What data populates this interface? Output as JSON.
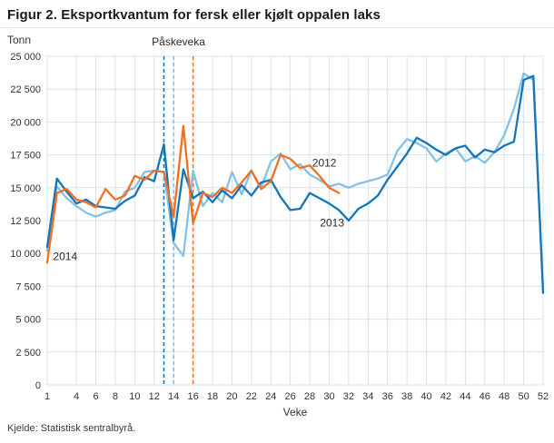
{
  "title": "Figur 2. Eksportkvantum for fersk eller kjølt oppalen laks",
  "source": "Kjelde: Statistisk sentralbyrå.",
  "chart_data": {
    "type": "line",
    "title": "Figur 2. Eksportkvantum for fersk eller kjølt oppalen laks",
    "ylabel": "Tonn",
    "xlabel": "Veke",
    "ylim": [
      0,
      25000
    ],
    "ytick_step": 2500,
    "x_range": [
      1,
      52
    ],
    "xticks": [
      1,
      4,
      6,
      8,
      10,
      12,
      14,
      16,
      18,
      20,
      22,
      24,
      26,
      28,
      30,
      32,
      34,
      36,
      38,
      40,
      42,
      44,
      46,
      48,
      50,
      52
    ],
    "grid": true,
    "legend_position": "inline-labels",
    "colors": {
      "grid": "#d6e2ec",
      "axis_text": "#333333",
      "annotation_text": "#2b2b2b"
    },
    "easter_annotation": {
      "label": "Påskeveka",
      "label_week": 14.5,
      "lines": [
        {
          "year": "2013",
          "week": 13,
          "color": "#1276b9"
        },
        {
          "year": "2012",
          "week": 14,
          "color": "#85c1e5"
        },
        {
          "year": "2014",
          "week": 16,
          "color": "#f36f21"
        }
      ]
    },
    "series": [
      {
        "name": "2012",
        "color": "#85c1e5",
        "start_week": 1,
        "values": [
          10200,
          15100,
          14200,
          13600,
          13100,
          12800,
          13100,
          13300,
          14700,
          15000,
          16200,
          16300,
          16200,
          10800,
          9800,
          16300,
          13600,
          14600,
          13900,
          16200,
          14500,
          16300,
          15000,
          17000,
          17600,
          16400,
          16800,
          16000,
          15600,
          15100,
          15300,
          15000,
          15300,
          15500,
          15700,
          16000,
          17800,
          18700,
          18400,
          18000,
          17000,
          17600,
          18000,
          17000,
          17400,
          16900,
          17700,
          19000,
          21000,
          23700,
          23200,
          7200
        ]
      },
      {
        "name": "2013",
        "color": "#1276b9",
        "start_week": 1,
        "values": [
          10500,
          15700,
          14700,
          13800,
          14100,
          13600,
          13500,
          13400,
          14000,
          14400,
          15800,
          15500,
          18300,
          11000,
          16400,
          14200,
          14700,
          13900,
          14800,
          14200,
          15200,
          14400,
          15400,
          15600,
          14300,
          13300,
          13400,
          14600,
          14200,
          13800,
          13300,
          12500,
          13400,
          13800,
          14400,
          15600,
          16600,
          17600,
          18800,
          18400,
          17900,
          17500,
          18000,
          18200,
          17300,
          17900,
          17700,
          18200,
          18500,
          23200,
          23500,
          7000
        ]
      },
      {
        "name": "2014",
        "color": "#f36f21",
        "start_week": 1,
        "values": [
          9300,
          14600,
          14900,
          14100,
          13900,
          13500,
          14900,
          14100,
          14400,
          15900,
          15600,
          16300,
          16200,
          12800,
          19700,
          12300,
          14600,
          14300,
          15000,
          14600,
          15400,
          16300,
          14900,
          15500,
          17500,
          17200,
          16500,
          16700,
          15900,
          15000,
          14600
        ]
      }
    ],
    "series_labels": [
      {
        "text": "2014",
        "week": 1.6,
        "value": 9500,
        "anchor": "start"
      },
      {
        "text": "2012",
        "week": 29.5,
        "value": 16600,
        "anchor": "middle"
      },
      {
        "text": "2013",
        "week": 30.3,
        "value": 12050,
        "anchor": "middle"
      }
    ]
  }
}
